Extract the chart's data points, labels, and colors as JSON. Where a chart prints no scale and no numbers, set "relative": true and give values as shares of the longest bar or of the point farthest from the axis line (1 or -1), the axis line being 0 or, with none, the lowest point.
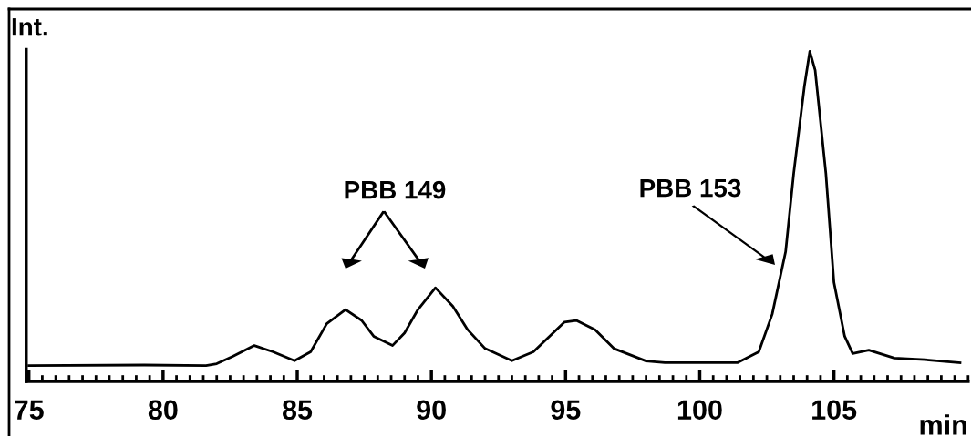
{
  "chart_data": {
    "type": "line",
    "relative": true,
    "xlabel": "min",
    "ylabel": "Int.",
    "tick_labels": "x",
    "grid": false,
    "legend": false,
    "marker": "none",
    "line_style": "solid",
    "xlim": [
      74.9,
      110
    ],
    "xticks": [
      75,
      80,
      85,
      90,
      95,
      100,
      105
    ],
    "annotations": [
      "PBB 149",
      "PBB 153"
    ],
    "series": [
      {
        "color": "#000000",
        "x": [
          75.0,
          79.3,
          81.6,
          82.0,
          82.6,
          83.4,
          84.1,
          84.9,
          85.5,
          86.1,
          86.8,
          87.4,
          87.85,
          88.55,
          89.0,
          89.5,
          90.15,
          90.8,
          91.35,
          92.0,
          93.0,
          93.8,
          94.96,
          95.4,
          96.1,
          96.8,
          98.0,
          98.7,
          101.4,
          102.2,
          102.7,
          103.2,
          103.5,
          103.9,
          104.1,
          104.3,
          104.7,
          105.0,
          105.4,
          105.7,
          106.3,
          107.25,
          108.4,
          109.7
        ],
        "values": [
          0.048,
          0.05,
          0.048,
          0.054,
          0.076,
          0.109,
          0.09,
          0.063,
          0.09,
          0.175,
          0.218,
          0.185,
          0.137,
          0.109,
          0.147,
          0.218,
          0.284,
          0.228,
          0.157,
          0.1,
          0.063,
          0.09,
          0.18,
          0.185,
          0.157,
          0.1,
          0.062,
          0.057,
          0.057,
          0.09,
          0.204,
          0.393,
          0.63,
          0.895,
          1.0,
          0.943,
          0.63,
          0.3,
          0.137,
          0.085,
          0.095,
          0.071,
          0.066,
          0.057
        ]
      }
    ]
  }
}
